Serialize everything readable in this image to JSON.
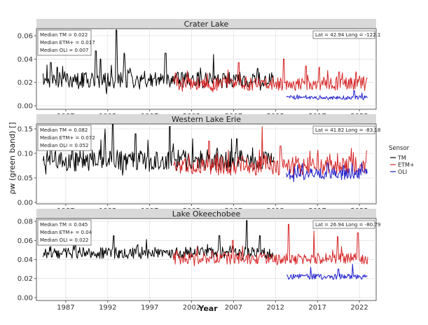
{
  "chart_data": {
    "type": "line",
    "xlabel": "Year",
    "ylabel": "ρw (green band) []",
    "x_ticks": [
      "1987",
      "1992",
      "1997",
      "2002",
      "2007",
      "2012",
      "2017",
      "2022"
    ],
    "xlim": [
      1983.5,
      2024.0
    ],
    "legend": {
      "title": "Sensor",
      "placement": "right",
      "entries": [
        {
          "name": "TM",
          "color": "#000000"
        },
        {
          "name": "ETM+",
          "color": "#d62728"
        },
        {
          "name": "OLI",
          "color": "#1f1fcc"
        }
      ]
    },
    "panels": [
      {
        "title": "Crater Lake",
        "ylim": [
          -0.003,
          0.066
        ],
        "y_ticks": [
          0.0,
          0.02,
          0.04,
          0.06
        ],
        "y_tick_labels": [
          "0.00",
          "0.02",
          "0.04",
          "0.06"
        ],
        "medians": [
          "Median TM = 0.022",
          "Median ETM+ = 0.017",
          "Median OLI = 0.007"
        ],
        "location": "Lat = 42.94  Long = -122.1",
        "series": [
          {
            "name": "TM",
            "color": "#000000",
            "range": [
              1984.3,
              2011.8
            ],
            "base": 0.022,
            "amp": 0.007,
            "spike": 0.018,
            "seed": 11,
            "peaks": [
              [
                1985.2,
                0.037
              ],
              [
                1986.0,
                0.033
              ],
              [
                1990.6,
                0.047
              ],
              [
                1991.1,
                0.04
              ],
              [
                1993.0,
                0.065
              ],
              [
                1994.0,
                0.045
              ],
              [
                1998.9,
                0.045
              ],
              [
                2004.6,
                0.044
              ],
              [
                2009.9,
                0.032
              ]
            ]
          },
          {
            "name": "ETM+",
            "color": "#d62728",
            "range": [
              1999.8,
              2023.0
            ],
            "base": 0.019,
            "amp": 0.006,
            "spike": 0.014,
            "seed": 23,
            "peaks": [
              [
                2001.5,
                0.03
              ],
              [
                2007.6,
                0.037
              ],
              [
                2013.0,
                0.04
              ],
              [
                2015.6,
                0.034
              ],
              [
                2017.2,
                0.033
              ],
              [
                2019.6,
                0.029
              ],
              [
                2021.6,
                0.029
              ]
            ]
          },
          {
            "name": "OLI",
            "color": "#1f1fcc",
            "range": [
              2013.3,
              2023.0
            ],
            "base": 0.007,
            "amp": 0.0017,
            "spike": 0.003,
            "seed": 37,
            "peaks": [
              [
                2021.4,
                0.013
              ],
              [
                2022.3,
                0.011
              ]
            ]
          }
        ]
      },
      {
        "title": "Western Lake Erie",
        "ylim": [
          -0.003,
          0.16
        ],
        "y_ticks": [
          0.0,
          0.05,
          0.1,
          0.15
        ],
        "y_tick_labels": [
          "0.00",
          "0.05",
          "0.10",
          "0.15"
        ],
        "medians": [
          "Median TM = 0.082",
          "Median ETM+ = 0.072",
          "Median OLI = 0.052"
        ],
        "location": "Lat = 41.82  Long = -83.18",
        "series": [
          {
            "name": "TM",
            "color": "#000000",
            "range": [
              1984.3,
              2011.8
            ],
            "base": 0.085,
            "amp": 0.022,
            "spike": 0.045,
            "seed": 5,
            "peaks": [
              [
                1985.2,
                0.13
              ],
              [
                1991.7,
                0.15
              ],
              [
                1992.6,
                0.16
              ],
              [
                1995.3,
                0.14
              ],
              [
                1999.4,
                0.155
              ],
              [
                2002.1,
                0.13
              ],
              [
                2007.4,
                0.13
              ]
            ]
          },
          {
            "name": "ETM+",
            "color": "#d62728",
            "range": [
              1999.8,
              2023.0
            ],
            "base": 0.075,
            "amp": 0.02,
            "spike": 0.04,
            "seed": 17,
            "peaks": [
              [
                2004.1,
                0.125
              ],
              [
                2010.4,
                0.155
              ],
              [
                2012.6,
                0.115
              ],
              [
                2016.1,
                0.105
              ],
              [
                2022.9,
                0.105
              ]
            ]
          },
          {
            "name": "OLI",
            "color": "#1f1fcc",
            "range": [
              2013.3,
              2023.0
            ],
            "base": 0.058,
            "amp": 0.012,
            "spike": 0.02,
            "seed": 41,
            "peaks": [
              [
                2015.2,
                0.08
              ],
              [
                2018.2,
                0.08
              ],
              [
                2020.1,
                0.075
              ]
            ]
          }
        ]
      },
      {
        "title": "Lake Okeechobee",
        "ylim": [
          -0.003,
          0.083
        ],
        "y_ticks": [
          0.0,
          0.02,
          0.04,
          0.06,
          0.08
        ],
        "y_tick_labels": [
          "0.00",
          "0.02",
          "0.04",
          "0.06",
          "0.08"
        ],
        "medians": [
          "Median TM = 0.045",
          "Median ETM+ = 0.04",
          "Median OLI = 0.022"
        ],
        "location": "Lat = 26.94  Long = -80.79",
        "series": [
          {
            "name": "TM",
            "color": "#000000",
            "range": [
              1984.3,
              2011.8
            ],
            "base": 0.047,
            "amp": 0.006,
            "spike": 0.012,
            "seed": 29,
            "peaks": [
              [
                1992.7,
                0.065
              ],
              [
                1996.6,
                0.061
              ],
              [
                2005.3,
                0.065
              ],
              [
                2008.6,
                0.081
              ],
              [
                2010.1,
                0.065
              ]
            ]
          },
          {
            "name": "ETM+",
            "color": "#d62728",
            "range": [
              1999.8,
              2023.0
            ],
            "base": 0.041,
            "amp": 0.006,
            "spike": 0.014,
            "seed": 31,
            "peaks": [
              [
                2006.9,
                0.06
              ],
              [
                2013.6,
                0.077
              ],
              [
                2016.6,
                0.07
              ],
              [
                2019.4,
                0.064
              ],
              [
                2021.8,
                0.068
              ]
            ]
          },
          {
            "name": "OLI",
            "color": "#1f1fcc",
            "range": [
              2013.3,
              2023.0
            ],
            "base": 0.022,
            "amp": 0.003,
            "spike": 0.007,
            "seed": 43,
            "peaks": [
              [
                2016.2,
                0.032
              ],
              [
                2019.5,
                0.03
              ],
              [
                2021.2,
                0.035
              ]
            ]
          }
        ]
      }
    ]
  }
}
